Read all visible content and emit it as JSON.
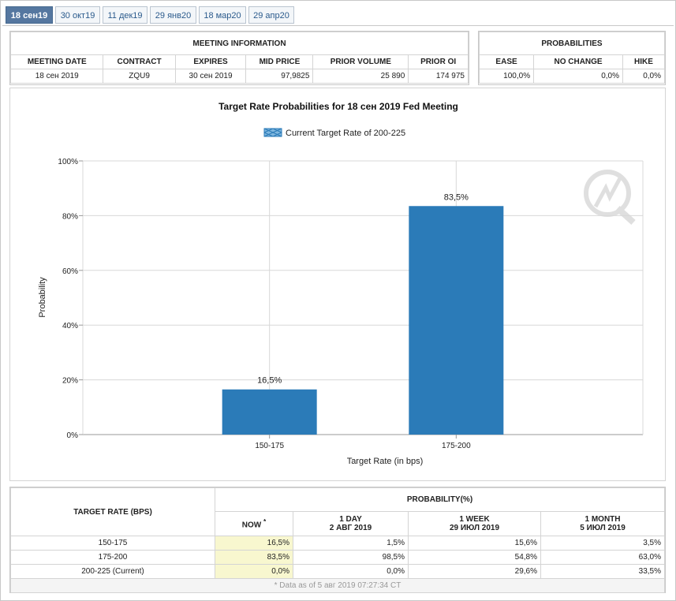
{
  "tabs": [
    "18 сен19",
    "30 окт19",
    "11 дек19",
    "29 янв20",
    "18 мар20",
    "29 апр20"
  ],
  "active_tab": 0,
  "meeting_info": {
    "title": "MEETING INFORMATION",
    "headers": [
      "MEETING DATE",
      "CONTRACT",
      "EXPIRES",
      "MID PRICE",
      "PRIOR VOLUME",
      "PRIOR OI"
    ],
    "row": [
      "18 сен 2019",
      "ZQU9",
      "30 сен 2019",
      "97,9825",
      "25 890",
      "174 975"
    ]
  },
  "probabilities": {
    "title": "PROBABILITIES",
    "headers": [
      "EASE",
      "NO CHANGE",
      "HIKE"
    ],
    "row": [
      "100,0%",
      "0,0%",
      "0,0%"
    ]
  },
  "chart_data": {
    "type": "bar",
    "title": "Target Rate Probabilities for 18 сен 2019 Fed Meeting",
    "legend": "Current Target Rate of 200-225",
    "categories": [
      "150-175",
      "175-200"
    ],
    "values": [
      16.5,
      83.5
    ],
    "data_labels": [
      "16,5%",
      "83,5%"
    ],
    "xlabel": "Target Rate (in bps)",
    "ylabel": "Probability",
    "ylim": [
      0,
      100
    ],
    "yticks": [
      "0%",
      "20%",
      "40%",
      "60%",
      "80%",
      "100%"
    ],
    "bar_color": "#2b7bb8",
    "grid": true
  },
  "prob_table": {
    "col0": "TARGET RATE (BPS)",
    "group": "PROBABILITY(%)",
    "now": "NOW",
    "now_mark": "*",
    "cols": [
      {
        "l1": "1 DAY",
        "l2": "2 АВГ 2019"
      },
      {
        "l1": "1 WEEK",
        "l2": "29 ИЮЛ 2019"
      },
      {
        "l1": "1 MONTH",
        "l2": "5 ИЮЛ 2019"
      }
    ],
    "rows": [
      [
        "150-175",
        "16,5%",
        "1,5%",
        "15,6%",
        "3,5%"
      ],
      [
        "175-200",
        "83,5%",
        "98,5%",
        "54,8%",
        "63,0%"
      ],
      [
        "200-225 (Current)",
        "0,0%",
        "0,0%",
        "29,6%",
        "33,5%"
      ]
    ],
    "footnote": "* Data as of 5 авг 2019 07:27:34 CT"
  }
}
